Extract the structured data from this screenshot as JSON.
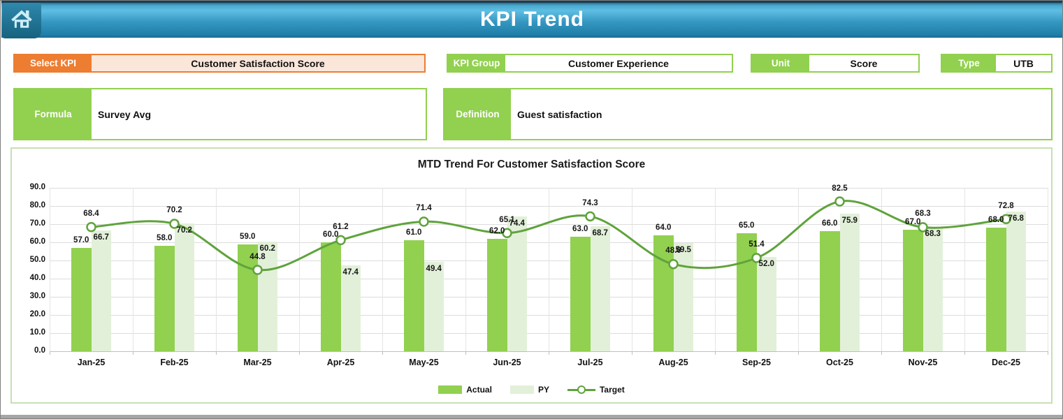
{
  "header": {
    "title": "KPI Trend"
  },
  "filters": {
    "select_kpi": {
      "label": "Select KPI",
      "value": "Customer Satisfaction Score"
    },
    "kpi_group": {
      "label": "KPI Group",
      "value": "Customer Experience"
    },
    "unit": {
      "label": "Unit",
      "value": "Score"
    },
    "type": {
      "label": "Type",
      "value": "UTB"
    },
    "formula": {
      "label": "Formula",
      "value": "Survey Avg"
    },
    "definition": {
      "label": "Definition",
      "value": "Guest satisfaction"
    }
  },
  "theme_colors": {
    "header_blue": "#2F93BE",
    "accent_orange": "#ED7D31",
    "accent_orange_fill": "#FBE7DA",
    "accent_green": "#92D050",
    "light_green_border": "#C6E0B4"
  },
  "chart_data": {
    "type": "bar",
    "title": "MTD Trend For Customer Satisfaction Score",
    "categories": [
      "Jan-25",
      "Feb-25",
      "Mar-25",
      "Apr-25",
      "May-25",
      "Jun-25",
      "Jul-25",
      "Aug-25",
      "Sep-25",
      "Oct-25",
      "Nov-25",
      "Dec-25"
    ],
    "series": [
      {
        "name": "Actual",
        "type": "bar",
        "color": "#92D050",
        "values": [
          57.0,
          58.0,
          59.0,
          60.0,
          61.0,
          62.0,
          63.0,
          64.0,
          65.0,
          66.0,
          67.0,
          68.0
        ]
      },
      {
        "name": "PY",
        "type": "bar",
        "color": "#E2F0D9",
        "values": [
          66.7,
          70.2,
          60.2,
          47.4,
          49.4,
          74.4,
          68.7,
          59.5,
          52.0,
          75.9,
          68.3,
          76.8
        ]
      },
      {
        "name": "Target",
        "type": "line",
        "color": "#5FA33C",
        "values": [
          68.4,
          70.2,
          44.8,
          61.2,
          71.4,
          65.1,
          74.3,
          48.0,
          51.4,
          82.5,
          68.3,
          72.8
        ]
      }
    ],
    "xlabel": "",
    "ylabel": "",
    "ylim": [
      0,
      90
    ],
    "ystep": 10,
    "grid": true,
    "legend_position": "bottom",
    "data_label_format": "0.0"
  }
}
